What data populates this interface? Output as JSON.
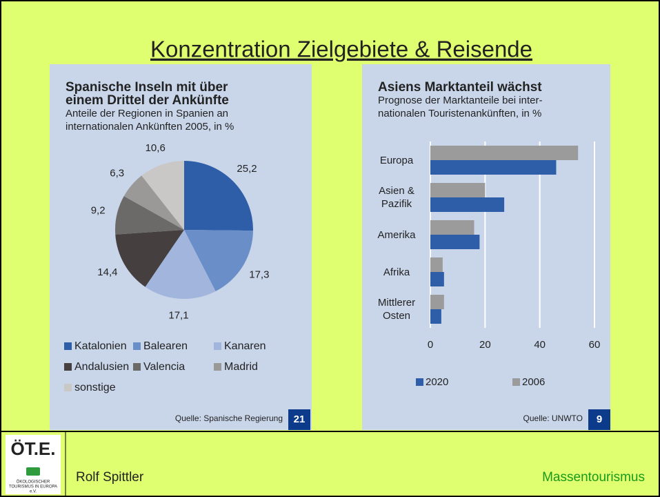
{
  "slide": {
    "title": "Konzentration Zielgebiete & Reisende",
    "author": "Rolf Spittler",
    "topic": "Massentourismus",
    "logo": {
      "mark": "ÖT.E.",
      "lines": [
        "ÖKOLOGISCHER",
        "TOURISMUS IN EUROPA",
        "e.V."
      ]
    }
  },
  "chart_data": [
    {
      "type": "pie",
      "title": [
        "Spanische Inseln mit über",
        "einem Drittel der Ankünfte"
      ],
      "subtitle": [
        "Anteile der Regionen in Spanien an",
        "internationalen Ankünften 2005, in %"
      ],
      "categories": [
        "Katalonien",
        "Balearen",
        "Kanaren",
        "Andalusien",
        "Valencia",
        "Madrid",
        "sonstige"
      ],
      "values": [
        25.2,
        17.3,
        17.1,
        14.4,
        9.2,
        6.3,
        10.6
      ],
      "value_labels": [
        "25,2",
        "17,3",
        "17,1",
        "14,4",
        "9,2",
        "6,3",
        "10,6"
      ],
      "colors": [
        "#2f5ea8",
        "#6a8ec8",
        "#a2b5dc",
        "#45403f",
        "#6b6a68",
        "#9a9998",
        "#c9c8c7"
      ],
      "source": "Quelle: Spanische Regierung",
      "number": 21
    },
    {
      "type": "bar",
      "orientation": "horizontal",
      "title": [
        "Asiens Marktanteil wächst"
      ],
      "subtitle": [
        "Prognose der Marktanteile bei inter-",
        "nationalen Touristenankünften, in %"
      ],
      "categories": [
        "Europa",
        "Asien & Pazifik",
        "Amerika",
        "Afrika",
        "Mittlerer Osten"
      ],
      "series": [
        {
          "name": "2020",
          "color": "#2f5ea8",
          "values": [
            46,
            27,
            18,
            5,
            4
          ]
        },
        {
          "name": "2006",
          "color": "#9b9b9b",
          "values": [
            54,
            20,
            16,
            4.5,
            5
          ]
        }
      ],
      "xlim": [
        0,
        60
      ],
      "xticks": [
        0,
        20,
        40,
        60
      ],
      "grid": true,
      "source": "Quelle: UNWTO",
      "number": 9
    }
  ]
}
